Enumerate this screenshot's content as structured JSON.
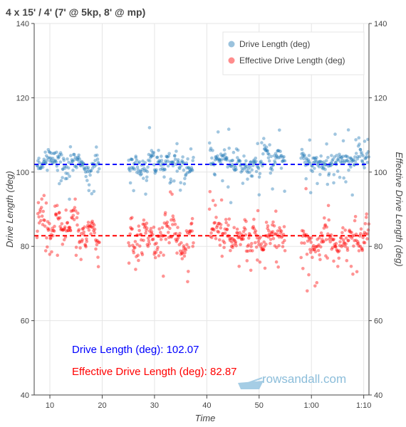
{
  "chart_data": {
    "type": "scatter",
    "title": "4 x 15' / 4' (7' @ 5kp, 8' @ mp)",
    "xlabel": "Time",
    "ylabel": "Drive Length (deg)",
    "y2label": "Effective Drive Length (deg)",
    "xlim": [
      7,
      71
    ],
    "ylim": [
      40,
      140
    ],
    "y2lim": [
      40,
      140
    ],
    "x_ticks": [
      {
        "value": 10,
        "label": "10"
      },
      {
        "value": 20,
        "label": "20"
      },
      {
        "value": 30,
        "label": "30"
      },
      {
        "value": 40,
        "label": "40"
      },
      {
        "value": 50,
        "label": "50"
      },
      {
        "value": 60,
        "label": "1:00"
      },
      {
        "value": 70,
        "label": "1:10"
      }
    ],
    "y_ticks": [
      40,
      60,
      80,
      100,
      120,
      140
    ],
    "grid": true,
    "legend_position": "top-right",
    "series": [
      {
        "name": "Drive Length (deg)",
        "color": "#1f77b4",
        "mean": 102.07,
        "segments": [
          {
            "x_start": 7.5,
            "x_end": 19.5,
            "center": 102.5,
            "spread": 2.2
          },
          {
            "x_start": 25.0,
            "x_end": 37.5,
            "center": 102.0,
            "spread": 2.0
          },
          {
            "x_start": 40.5,
            "x_end": 55.0,
            "center": 103.0,
            "spread": 2.3
          },
          {
            "x_start": 58.0,
            "x_end": 71.0,
            "center": 103.0,
            "spread": 2.0
          }
        ]
      },
      {
        "name": "Effective Drive Length (deg)",
        "color": "#ff0000",
        "mean": 82.87,
        "segments": [
          {
            "x_start": 7.5,
            "x_end": 19.5,
            "center": 84.0,
            "spread": 3.2
          },
          {
            "x_start": 25.0,
            "x_end": 37.5,
            "center": 82.0,
            "spread": 3.6
          },
          {
            "x_start": 40.5,
            "x_end": 55.0,
            "center": 82.5,
            "spread": 3.4
          },
          {
            "x_start": 58.0,
            "x_end": 71.0,
            "center": 82.0,
            "spread": 3.6
          }
        ]
      }
    ],
    "annotations": [
      {
        "text": "Drive Length (deg): 102.07",
        "color": "#0000ff"
      },
      {
        "text": "Effective Drive Length (deg): 82.87",
        "color": "#ff0000"
      }
    ]
  },
  "watermark": {
    "text": "rowsandall.com",
    "color": "#7fb6d6"
  }
}
